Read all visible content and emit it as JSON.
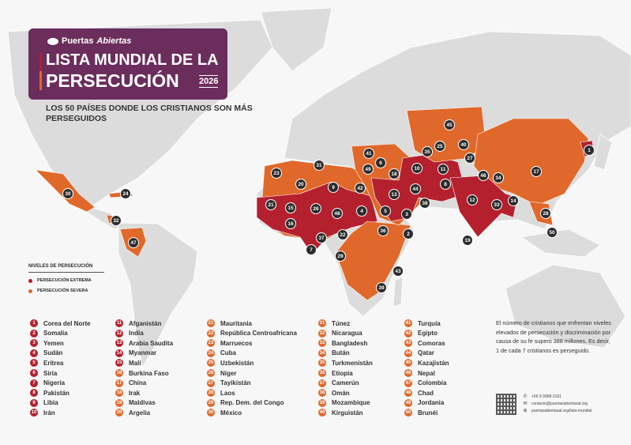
{
  "header": {
    "brand": "Puertas",
    "brand_italic": "Abiertas",
    "title_line1": "LISTA MUNDIAL DE LA",
    "title_line2": "PERSECUCIÓN",
    "year": "2026",
    "subtitle": "LOS 50 PAÍSES DONDE LOS CRISTIANOS SON MÁS PERSEGUIDOS"
  },
  "legend": {
    "title": "NIVELES DE PERSECUCIÓN",
    "items": [
      {
        "label": "PERSECUCIÓN EXTREMA",
        "color": "#b5202e"
      },
      {
        "label": "PERSECUCIÓN SEVERA",
        "color": "#e0682a"
      }
    ]
  },
  "colors": {
    "extreme": "#b5202e",
    "severe": "#e0682a",
    "brand": "#6b2d5c",
    "land": "#dcdcdc",
    "marker": "#2b2b2b"
  },
  "countries": [
    {
      "rank": "1",
      "name": "Corea del Norte",
      "level": "extreme"
    },
    {
      "rank": "2",
      "name": "Somalia",
      "level": "extreme"
    },
    {
      "rank": "3",
      "name": "Yemen",
      "level": "extreme"
    },
    {
      "rank": "4",
      "name": "Sudán",
      "level": "extreme"
    },
    {
      "rank": "5",
      "name": "Eritrea",
      "level": "extreme"
    },
    {
      "rank": "6",
      "name": "Siria",
      "level": "extreme"
    },
    {
      "rank": "7",
      "name": "Nigeria",
      "level": "extreme"
    },
    {
      "rank": "8",
      "name": "Pakistán",
      "level": "extreme"
    },
    {
      "rank": "9",
      "name": "Libia",
      "level": "extreme"
    },
    {
      "rank": "10",
      "name": "Irán",
      "level": "extreme"
    },
    {
      "rank": "11",
      "name": "Afganistán",
      "level": "extreme"
    },
    {
      "rank": "12",
      "name": "India",
      "level": "extreme"
    },
    {
      "rank": "13",
      "name": "Arabia Saudita",
      "level": "extreme"
    },
    {
      "rank": "14",
      "name": "Myanmar",
      "level": "extreme"
    },
    {
      "rank": "15",
      "name": "Malí",
      "level": "extreme"
    },
    {
      "rank": "16",
      "name": "Burkina Faso",
      "level": "severe"
    },
    {
      "rank": "17",
      "name": "China",
      "level": "severe"
    },
    {
      "rank": "18",
      "name": "Irak",
      "level": "severe"
    },
    {
      "rank": "19",
      "name": "Maldivas",
      "level": "severe"
    },
    {
      "rank": "20",
      "name": "Argelia",
      "level": "severe"
    },
    {
      "rank": "21",
      "name": "Mauritania",
      "level": "severe"
    },
    {
      "rank": "22",
      "name": "República Centroafricana",
      "level": "severe"
    },
    {
      "rank": "23",
      "name": "Marruecos",
      "level": "severe"
    },
    {
      "rank": "24",
      "name": "Cuba",
      "level": "severe"
    },
    {
      "rank": "25",
      "name": "Uzbekistán",
      "level": "severe"
    },
    {
      "rank": "26",
      "name": "Níger",
      "level": "severe"
    },
    {
      "rank": "27",
      "name": "Tayikistán",
      "level": "severe"
    },
    {
      "rank": "28",
      "name": "Laos",
      "level": "severe"
    },
    {
      "rank": "29",
      "name": "Rep. Dem. del Congo",
      "level": "severe"
    },
    {
      "rank": "30",
      "name": "México",
      "level": "severe"
    },
    {
      "rank": "31",
      "name": "Túnez",
      "level": "severe"
    },
    {
      "rank": "32",
      "name": "Nicaragua",
      "level": "severe"
    },
    {
      "rank": "33",
      "name": "Bangladesh",
      "level": "severe"
    },
    {
      "rank": "34",
      "name": "Bután",
      "level": "severe"
    },
    {
      "rank": "35",
      "name": "Turkmenistán",
      "level": "severe"
    },
    {
      "rank": "36",
      "name": "Etiopía",
      "level": "severe"
    },
    {
      "rank": "37",
      "name": "Camerún",
      "level": "severe"
    },
    {
      "rank": "38",
      "name": "Omán",
      "level": "severe"
    },
    {
      "rank": "39",
      "name": "Mozambique",
      "level": "severe"
    },
    {
      "rank": "40",
      "name": "Kirguistán",
      "level": "severe"
    },
    {
      "rank": "41",
      "name": "Turquía",
      "level": "severe"
    },
    {
      "rank": "42",
      "name": "Egipto",
      "level": "severe"
    },
    {
      "rank": "43",
      "name": "Comoras",
      "level": "severe"
    },
    {
      "rank": "44",
      "name": "Qatar",
      "level": "severe"
    },
    {
      "rank": "45",
      "name": "Kazajistán",
      "level": "severe"
    },
    {
      "rank": "46",
      "name": "Nepal",
      "level": "severe"
    },
    {
      "rank": "47",
      "name": "Colombia",
      "level": "severe"
    },
    {
      "rank": "48",
      "name": "Chad",
      "level": "severe"
    },
    {
      "rank": "49",
      "name": "Jordania",
      "level": "severe"
    },
    {
      "rank": "50",
      "name": "Brunéi",
      "level": "severe"
    }
  ],
  "info": "El número de cristianos que enfrentan niveles elevados de persecución y discriminación por causa de su fe superó 388 millones. Es decir, 1 de cada 7 cristianos es perseguido.",
  "contact": {
    "phone": "+56 9 9968-2161",
    "email": "contacto@puertasabiertasal.org",
    "web": "puertasabiertasal.org/lista-mundial",
    "icons": [
      "whatsapp-icon",
      "mail-icon",
      "globe-icon"
    ]
  }
}
